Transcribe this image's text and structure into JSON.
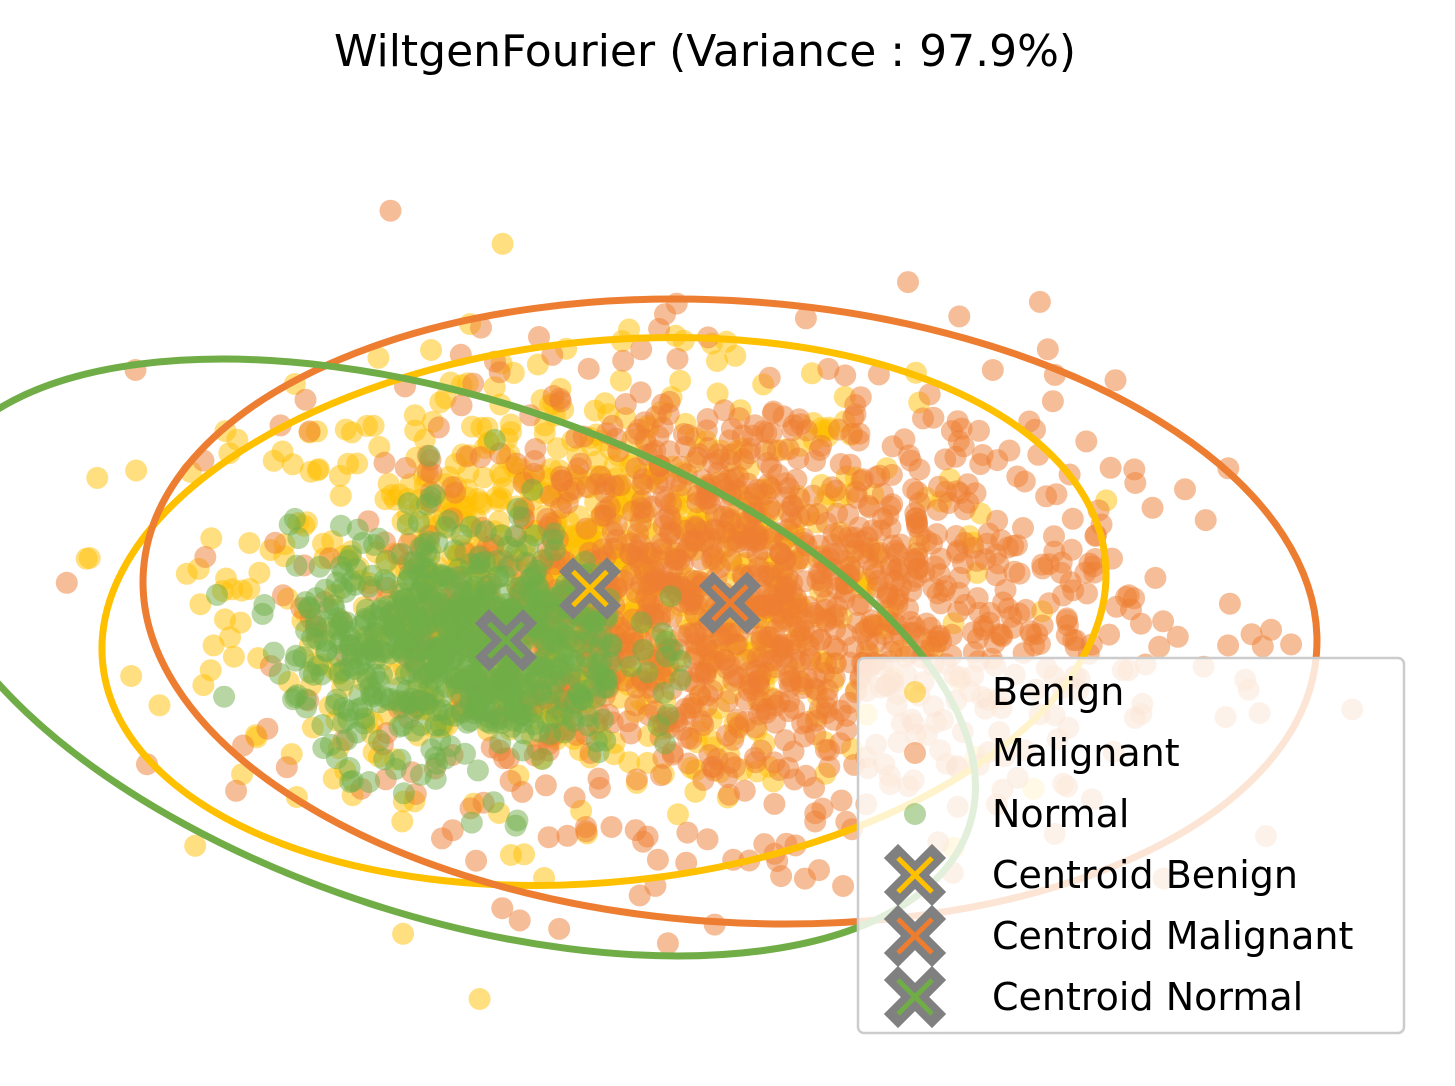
{
  "chart_data": {
    "type": "scatter",
    "title": "WiltgenFourier (Variance : 97.9%)",
    "xlabel": "",
    "ylabel": "",
    "axes_visible": false,
    "grid": false,
    "legend_position": "bottom-right",
    "xlim": [
      -10,
      10
    ],
    "ylim": [
      -8,
      8
    ],
    "series": [
      {
        "name": "Benign",
        "color": "#FFC000",
        "marker": "circle",
        "alpha": 0.5,
        "cloud": {
          "center": [
            -2.2,
            0.3
          ],
          "spread": [
            2.4,
            1.8
          ],
          "count": 900
        }
      },
      {
        "name": "Malignant",
        "color": "#ED7D31",
        "marker": "circle",
        "alpha": 0.5,
        "cloud": {
          "center": [
            0.3,
            0.0
          ],
          "spread": [
            2.6,
            1.9
          ],
          "count": 1300
        }
      },
      {
        "name": "Normal",
        "color": "#70AD47",
        "marker": "circle",
        "alpha": 0.5,
        "cloud": {
          "center": [
            -3.8,
            -0.8
          ],
          "spread": [
            1.2,
            1.0
          ],
          "count": 700
        }
      }
    ],
    "centroids": [
      {
        "name": "Centroid Benign",
        "color": "#FFC000",
        "edge_color": "#808080",
        "x": -2.0,
        "y": 0.2
      },
      {
        "name": "Centroid Malignant",
        "color": "#ED7D31",
        "edge_color": "#808080",
        "x": 0.0,
        "y": -0.05
      },
      {
        "name": "Centroid Normal",
        "color": "#70AD47",
        "edge_color": "#808080",
        "x": -3.2,
        "y": -0.7
      }
    ],
    "ellipses": [
      {
        "series": "Benign",
        "color": "#FFC000",
        "center": [
          -1.8,
          -0.2
        ],
        "semi_axes": [
          7.2,
          4.7
        ],
        "angle_deg": 6
      },
      {
        "series": "Malignant",
        "color": "#ED7D31",
        "center": [
          0.0,
          -0.2
        ],
        "semi_axes": [
          8.4,
          5.4
        ],
        "angle_deg": -4
      },
      {
        "series": "Normal",
        "color": "#70AD47",
        "center": [
          -4.0,
          -1.0
        ],
        "semi_axes": [
          7.8,
          4.5
        ],
        "angle_deg": -18
      }
    ],
    "legend": [
      {
        "label": "Benign",
        "kind": "point",
        "color": "#FFC000"
      },
      {
        "label": "Malignant",
        "kind": "point",
        "color": "#ED7D31"
      },
      {
        "label": "Normal",
        "kind": "point",
        "color": "#70AD47"
      },
      {
        "label": "Centroid Benign",
        "kind": "centroid",
        "color": "#FFC000"
      },
      {
        "label": "Centroid Malignant",
        "kind": "centroid",
        "color": "#ED7D31"
      },
      {
        "label": "Centroid Normal",
        "kind": "centroid",
        "color": "#70AD47"
      }
    ]
  }
}
